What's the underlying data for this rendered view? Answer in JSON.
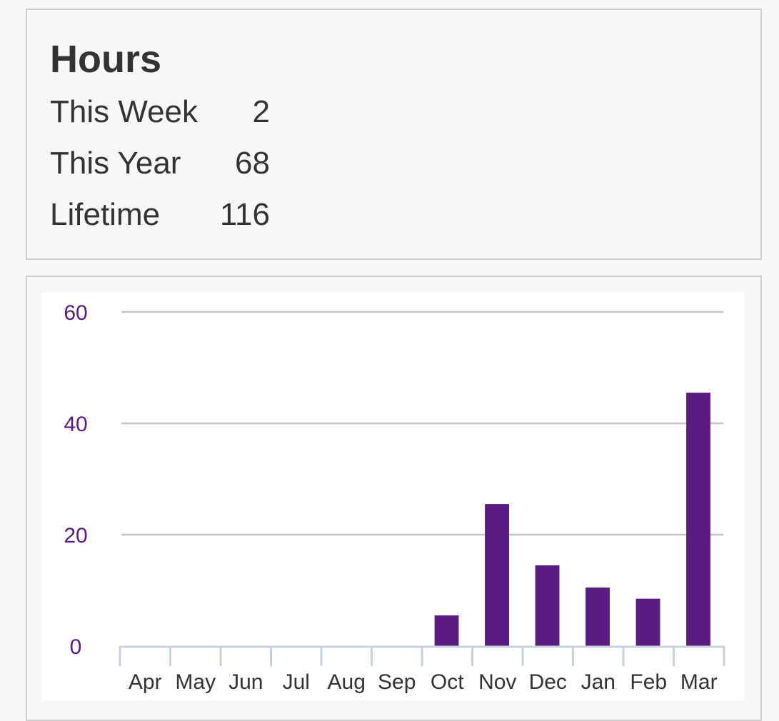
{
  "stats": {
    "title": "Hours",
    "rows": [
      {
        "label": "This Week",
        "value": "2"
      },
      {
        "label": "This Year",
        "value": "68"
      },
      {
        "label": "Lifetime",
        "value": "116"
      }
    ]
  },
  "chart_data": {
    "type": "bar",
    "title": "",
    "xlabel": "",
    "ylabel": "",
    "categories": [
      "Apr",
      "May",
      "Jun",
      "Jul",
      "Aug",
      "Sep",
      "Oct",
      "Nov",
      "Dec",
      "Jan",
      "Feb",
      "Mar"
    ],
    "values": [
      0,
      0,
      0,
      0,
      0,
      0,
      5.5,
      25.5,
      14.5,
      10.5,
      8.5,
      45.5
    ],
    "ylim": [
      0,
      60
    ],
    "yticks": [
      0,
      20,
      40,
      60
    ],
    "grid": true,
    "colors": {
      "bar": "#5b1c80",
      "tick_label": "#5b1c80",
      "grid": "#c4c4c4",
      "axis": "#c8d0dc"
    }
  }
}
